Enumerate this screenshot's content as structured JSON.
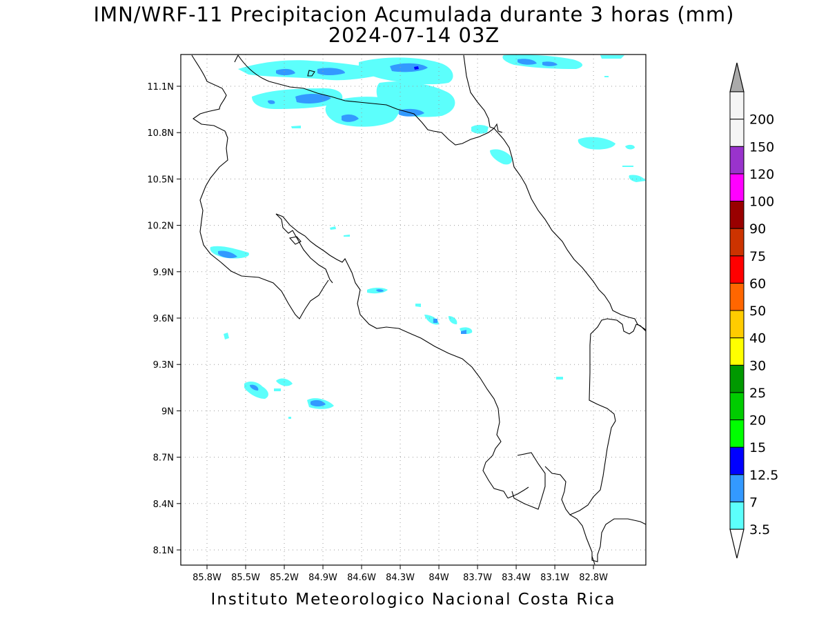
{
  "title_line1": "IMN/WRF-11 Precipitacion Acumulada durante 3 horas (mm)",
  "title_line2": "2024-07-14 03Z",
  "footer": "Instituto Meteorologico Nacional Costa Rica",
  "map": {
    "lon_range": [
      -86.0,
      -82.5
    ],
    "lat_range": [
      8.0,
      11.2
    ],
    "lat_ticks": [
      "8.1N",
      "8.4N",
      "8.7N",
      "9N",
      "9.3N",
      "9.6N",
      "9.9N",
      "10.2N",
      "10.5N",
      "10.8N",
      "11.1N"
    ],
    "lon_ticks": [
      "85.8W",
      "85.5W",
      "85.2W",
      "84.9W",
      "84.6W",
      "84.3W",
      "84W",
      "83.7W",
      "83.4W",
      "83.1W",
      "82.8W"
    ],
    "gridlines": true
  },
  "colorbar": {
    "levels": [
      "3.5",
      "7",
      "12.5",
      "15",
      "20",
      "25",
      "30",
      "40",
      "50",
      "60",
      "75",
      "90",
      "100",
      "120",
      "150",
      "200"
    ],
    "colors": [
      "#5cfffc",
      "#3399ff",
      "#0000ff",
      "#00ff00",
      "#00cc00",
      "#009900",
      "#ffff00",
      "#ffcc00",
      "#ff6600",
      "#ff0000",
      "#cc3300",
      "#990000",
      "#ff00ff",
      "#9933cc",
      "#f5f5f5",
      "#aaaaaa"
    ]
  }
}
